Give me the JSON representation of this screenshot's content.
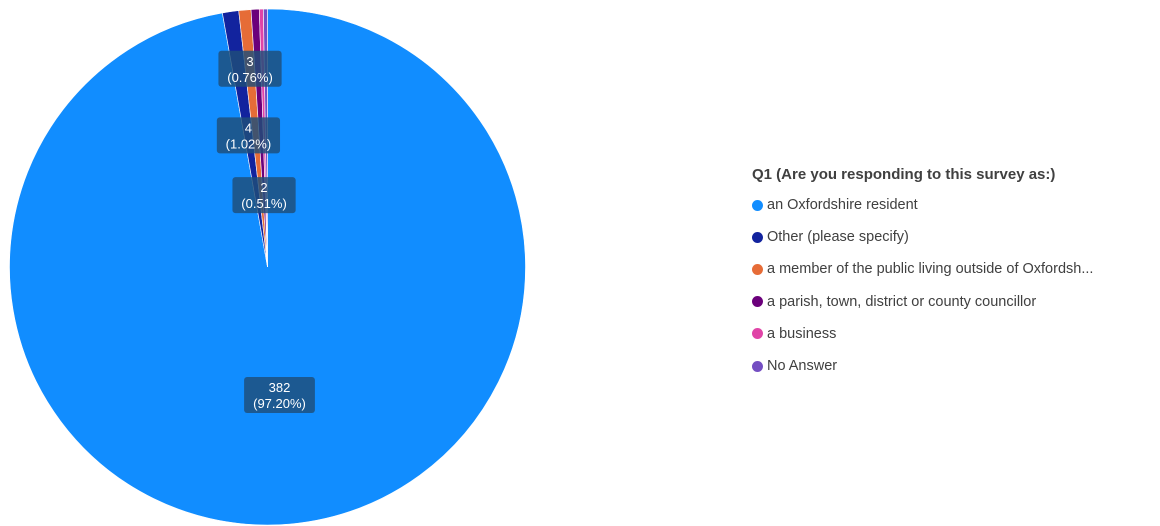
{
  "chart_data": {
    "type": "pie",
    "legend_title": "Q1 (Are you responding to this survey as:)",
    "legend_position": "right",
    "slices": [
      {
        "label": "an Oxfordshire resident",
        "value": 382,
        "percent": "97.20%",
        "color": "#118dff"
      },
      {
        "label": "Other (please specify)",
        "value": 4,
        "percent": "1.02%",
        "color": "#12239e"
      },
      {
        "label": "a member of the public living outside of Oxfordsh...",
        "value": 3,
        "percent": "0.76%",
        "color": "#e66c37"
      },
      {
        "label": "a parish, town, district or county councillor",
        "value": 2,
        "percent": "0.51%",
        "color": "#6b007b"
      },
      {
        "label": "a business",
        "value": 1,
        "percent": "",
        "color": "#e044a7"
      },
      {
        "label": "No Answer",
        "value": 1,
        "percent": "",
        "color": "#744ec2"
      }
    ],
    "data_labels": [
      {
        "slice": 0,
        "line1": "382",
        "line2": "(97.20%)"
      },
      {
        "slice": 1,
        "line1": "4",
        "line2": "(1.02%)"
      },
      {
        "slice": 2,
        "line1": "3",
        "line2": "(0.76%)"
      },
      {
        "slice": 3,
        "line1": "2",
        "line2": "(0.51%)"
      }
    ]
  }
}
